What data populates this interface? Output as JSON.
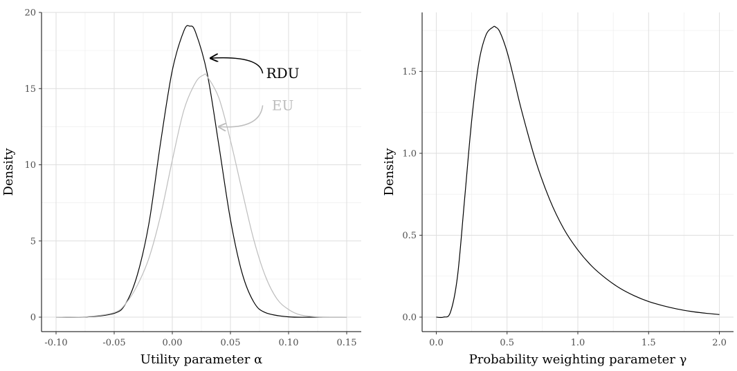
{
  "chart_data": [
    {
      "type": "line",
      "xlabel": "Utility parameter α",
      "ylabel": "Density",
      "xlim": [
        -0.1,
        0.15
      ],
      "ylim": [
        0,
        20
      ],
      "xticks": [
        -0.1,
        -0.05,
        0.0,
        0.05,
        0.1,
        0.15
      ],
      "xtick_labels": [
        "-0.10",
        "-0.05",
        "0.00",
        "0.05",
        "0.10",
        "0.15"
      ],
      "yticks": [
        0,
        5,
        10,
        15,
        20
      ],
      "ytick_labels": [
        "0",
        "5",
        "10",
        "15",
        "20"
      ],
      "grid": true,
      "series": [
        {
          "name": "RDU",
          "color": "#000000",
          "x": [
            -0.1,
            -0.075,
            -0.05,
            -0.04,
            -0.03,
            -0.02,
            -0.01,
            0.0,
            0.01,
            0.015,
            0.02,
            0.03,
            0.04,
            0.05,
            0.06,
            0.07,
            0.08,
            0.1,
            0.125,
            0.15
          ],
          "y": [
            0.0,
            0.01,
            0.25,
            0.9,
            2.8,
            6.2,
            11.5,
            16.2,
            18.8,
            19.1,
            18.7,
            16.0,
            11.3,
            6.4,
            2.9,
            1.0,
            0.3,
            0.02,
            0.0,
            0.0
          ]
        },
        {
          "name": "EU",
          "color": "#bdbdbd",
          "x": [
            -0.1,
            -0.075,
            -0.05,
            -0.04,
            -0.03,
            -0.02,
            -0.01,
            0.0,
            0.01,
            0.02,
            0.027,
            0.03,
            0.04,
            0.05,
            0.06,
            0.07,
            0.08,
            0.09,
            0.1,
            0.11,
            0.125,
            0.15
          ],
          "y": [
            0.0,
            0.02,
            0.3,
            0.9,
            2.1,
            3.9,
            6.7,
            10.3,
            13.6,
            15.4,
            15.9,
            15.8,
            14.4,
            11.6,
            8.3,
            5.1,
            2.7,
            1.2,
            0.5,
            0.15,
            0.02,
            0.0
          ]
        }
      ],
      "annotations": [
        {
          "text": "RDU",
          "x": 0.095,
          "y": 16.0,
          "color": "#000000",
          "arrow_to": [
            0.033,
            17.0
          ]
        },
        {
          "text": "EU",
          "x": 0.095,
          "y": 13.9,
          "color": "#bdbdbd",
          "arrow_to": [
            0.04,
            12.5
          ]
        }
      ]
    },
    {
      "type": "line",
      "xlabel": "Probability weighting parameter γ",
      "ylabel": "Density",
      "xlim": [
        0.0,
        2.0
      ],
      "ylim": [
        0,
        1.75
      ],
      "xticks": [
        0.0,
        0.5,
        1.0,
        1.5,
        2.0
      ],
      "xtick_labels": [
        "0.0",
        "0.5",
        "1.0",
        "1.5",
        "2.0"
      ],
      "yticks": [
        0.0,
        0.5,
        1.0,
        1.5
      ],
      "ytick_labels": [
        "0.0",
        "0.5",
        "1.0",
        "1.5"
      ],
      "grid": true,
      "series": [
        {
          "name": "",
          "color": "#000000",
          "x": [
            0.0,
            0.05,
            0.1,
            0.15,
            0.2,
            0.25,
            0.3,
            0.35,
            0.4,
            0.42,
            0.45,
            0.5,
            0.55,
            0.6,
            0.7,
            0.8,
            0.9,
            1.0,
            1.1,
            1.2,
            1.3,
            1.4,
            1.5,
            1.6,
            1.7,
            1.8,
            1.9,
            2.0
          ],
          "y": [
            0.0,
            0.0,
            0.03,
            0.25,
            0.72,
            1.2,
            1.55,
            1.72,
            1.77,
            1.77,
            1.74,
            1.62,
            1.45,
            1.27,
            0.96,
            0.72,
            0.54,
            0.41,
            0.31,
            0.235,
            0.175,
            0.13,
            0.095,
            0.07,
            0.05,
            0.035,
            0.024,
            0.016
          ]
        }
      ],
      "annotations": []
    }
  ]
}
